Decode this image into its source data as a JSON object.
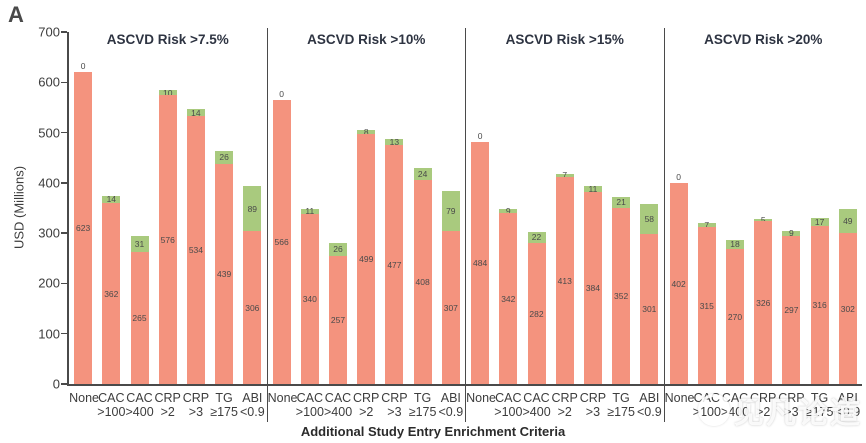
{
  "figure": {
    "panel_label": "A",
    "watermark_text": "见凡论道"
  },
  "chart_data": {
    "type": "bar",
    "stacked": true,
    "title": "",
    "xlabel": "Additional Study Entry Enrichment Criteria",
    "ylabel": "USD (Millions)",
    "ylim": [
      0,
      700
    ],
    "yticks": [
      0,
      100,
      200,
      300,
      400,
      500,
      600,
      700
    ],
    "grid": false,
    "legend": "none",
    "colors": {
      "base_segment": "#f4937e",
      "increment_segment": "#a9ca7e",
      "axis": "#4a4a4a",
      "value_label": "#4a4a4a"
    },
    "categories": [
      [
        "None",
        ""
      ],
      [
        "CAC",
        ">100"
      ],
      [
        "CAC",
        ">400"
      ],
      [
        "CRP",
        ">2"
      ],
      [
        "CRP",
        ">3"
      ],
      [
        "TG",
        "≥175"
      ],
      [
        "ABI",
        "<0.9"
      ]
    ],
    "panels": [
      {
        "title": "ASCVD Risk >7.5%",
        "series": [
          {
            "name": "base",
            "values": [
              623,
              362,
              265,
              576,
              534,
              439,
              306
            ]
          },
          {
            "name": "increment",
            "values": [
              0,
              14,
              31,
              10,
              14,
              26,
              89
            ]
          }
        ]
      },
      {
        "title": "ASCVD Risk >10%",
        "series": [
          {
            "name": "base",
            "values": [
              566,
              340,
              257,
              499,
              477,
              408,
              307
            ]
          },
          {
            "name": "increment",
            "values": [
              0,
              11,
              26,
              8,
              13,
              24,
              79
            ]
          }
        ]
      },
      {
        "title": "ASCVD Risk >15%",
        "series": [
          {
            "name": "base",
            "values": [
              484,
              342,
              282,
              413,
              384,
              352,
              301
            ]
          },
          {
            "name": "increment",
            "values": [
              0,
              9,
              22,
              7,
              11,
              21,
              58
            ]
          }
        ]
      },
      {
        "title": "ASCVD Risk >20%",
        "series": [
          {
            "name": "base",
            "values": [
              402,
              315,
              270,
              326,
              297,
              316,
              302
            ]
          },
          {
            "name": "increment",
            "values": [
              0,
              7,
              18,
              5,
              9,
              17,
              49
            ]
          }
        ]
      }
    ]
  }
}
